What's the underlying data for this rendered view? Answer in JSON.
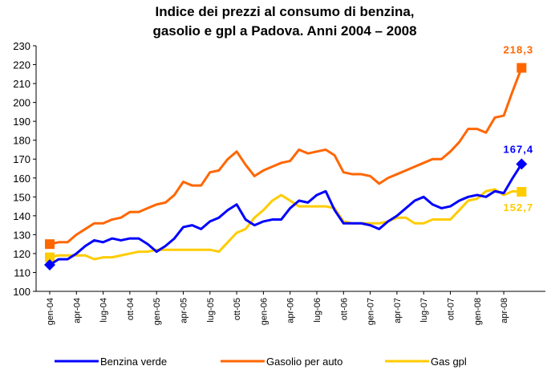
{
  "chart_data": {
    "type": "line",
    "title": [
      "Indice dei prezzi al consumo di benzina,",
      "gasolio e gpl a Padova. Anni 2004 – 2008"
    ],
    "categories": [
      "gen-04",
      null,
      null,
      "apr-04",
      null,
      null,
      "lug-04",
      null,
      null,
      "ott-04",
      null,
      null,
      "gen-05",
      null,
      null,
      "apr-05",
      null,
      null,
      "lug-05",
      null,
      null,
      "ott-05",
      null,
      null,
      "gen-06",
      null,
      null,
      "apr-06",
      null,
      null,
      "lug-06",
      null,
      null,
      "ott-06",
      null,
      null,
      "gen-07",
      null,
      null,
      "apr-07",
      null,
      null,
      "lug-07",
      null,
      null,
      "ott-07",
      null,
      null,
      "gen-08",
      null,
      null,
      "apr-08",
      null,
      null
    ],
    "series": [
      {
        "name": "Benzina verde",
        "color": "#0000ff",
        "marker": "diamond",
        "values": [
          114,
          117,
          117,
          120,
          124,
          127,
          126,
          128,
          127,
          128,
          128,
          125,
          121,
          124,
          128,
          134,
          135,
          133,
          137,
          139,
          143,
          146,
          138,
          135,
          137,
          138,
          138,
          144,
          148,
          147,
          151,
          153,
          143,
          136,
          136,
          136,
          135,
          133,
          137,
          140,
          144,
          148,
          150,
          146,
          144,
          145,
          148,
          150,
          151,
          150,
          153,
          152,
          160,
          167.4
        ],
        "value_labels": [
          null,
          null,
          null,
          null,
          null,
          null,
          null,
          null,
          null,
          null,
          null,
          null,
          null,
          null,
          null,
          null,
          null,
          null,
          null,
          null,
          null,
          null,
          null,
          null,
          null,
          null,
          null,
          null,
          null,
          null,
          null,
          null,
          null,
          null,
          null,
          null,
          null,
          null,
          null,
          null,
          null,
          null,
          null,
          null,
          null,
          null,
          null,
          null,
          null,
          null,
          null,
          null,
          null,
          "167,4"
        ]
      },
      {
        "name": "Gasolio per auto",
        "color": "#ff6600",
        "marker": "square",
        "values": [
          125,
          126,
          126,
          130,
          133,
          136,
          136,
          138,
          139,
          142,
          142,
          144,
          146,
          147,
          151,
          158,
          156,
          156,
          163,
          164,
          170,
          174,
          167,
          161,
          164,
          166,
          168,
          169,
          175,
          173,
          174,
          175,
          172,
          163,
          162,
          162,
          161,
          157,
          160,
          162,
          164,
          166,
          168,
          170,
          170,
          174,
          179,
          186,
          186,
          184,
          192,
          193,
          206,
          218.3
        ],
        "value_labels": [
          null,
          null,
          null,
          null,
          null,
          null,
          null,
          null,
          null,
          null,
          null,
          null,
          null,
          null,
          null,
          null,
          null,
          null,
          null,
          null,
          null,
          null,
          null,
          null,
          null,
          null,
          null,
          null,
          null,
          null,
          null,
          null,
          null,
          null,
          null,
          null,
          null,
          null,
          null,
          null,
          null,
          null,
          null,
          null,
          null,
          null,
          null,
          null,
          null,
          null,
          null,
          null,
          null,
          "218,3"
        ]
      },
      {
        "name": "Gas gpl",
        "color": "#ffcc00",
        "marker": "square",
        "values": [
          118,
          119,
          119,
          119,
          119,
          117,
          118,
          118,
          119,
          120,
          121,
          121,
          122,
          122,
          122,
          122,
          122,
          122,
          122,
          121,
          126,
          131,
          133,
          139,
          143,
          148,
          151,
          148,
          145,
          145,
          145,
          145,
          144,
          137,
          136,
          136,
          136,
          136,
          137,
          139,
          139,
          136,
          136,
          138,
          138,
          138,
          143,
          148,
          149,
          153,
          154,
          151,
          153,
          152.7
        ],
        "value_labels": [
          null,
          null,
          null,
          null,
          null,
          null,
          null,
          null,
          null,
          null,
          null,
          null,
          null,
          null,
          null,
          null,
          null,
          null,
          null,
          null,
          null,
          null,
          null,
          null,
          null,
          null,
          null,
          null,
          null,
          null,
          null,
          null,
          null,
          null,
          null,
          null,
          null,
          null,
          null,
          null,
          null,
          null,
          null,
          null,
          null,
          null,
          null,
          null,
          null,
          null,
          null,
          null,
          null,
          "152,7"
        ]
      }
    ],
    "ylim": [
      100,
      230
    ],
    "yticks": [
      100,
      110,
      120,
      130,
      140,
      150,
      160,
      170,
      180,
      190,
      200,
      210,
      220,
      230
    ],
    "grid": false,
    "legend": "bottom"
  }
}
